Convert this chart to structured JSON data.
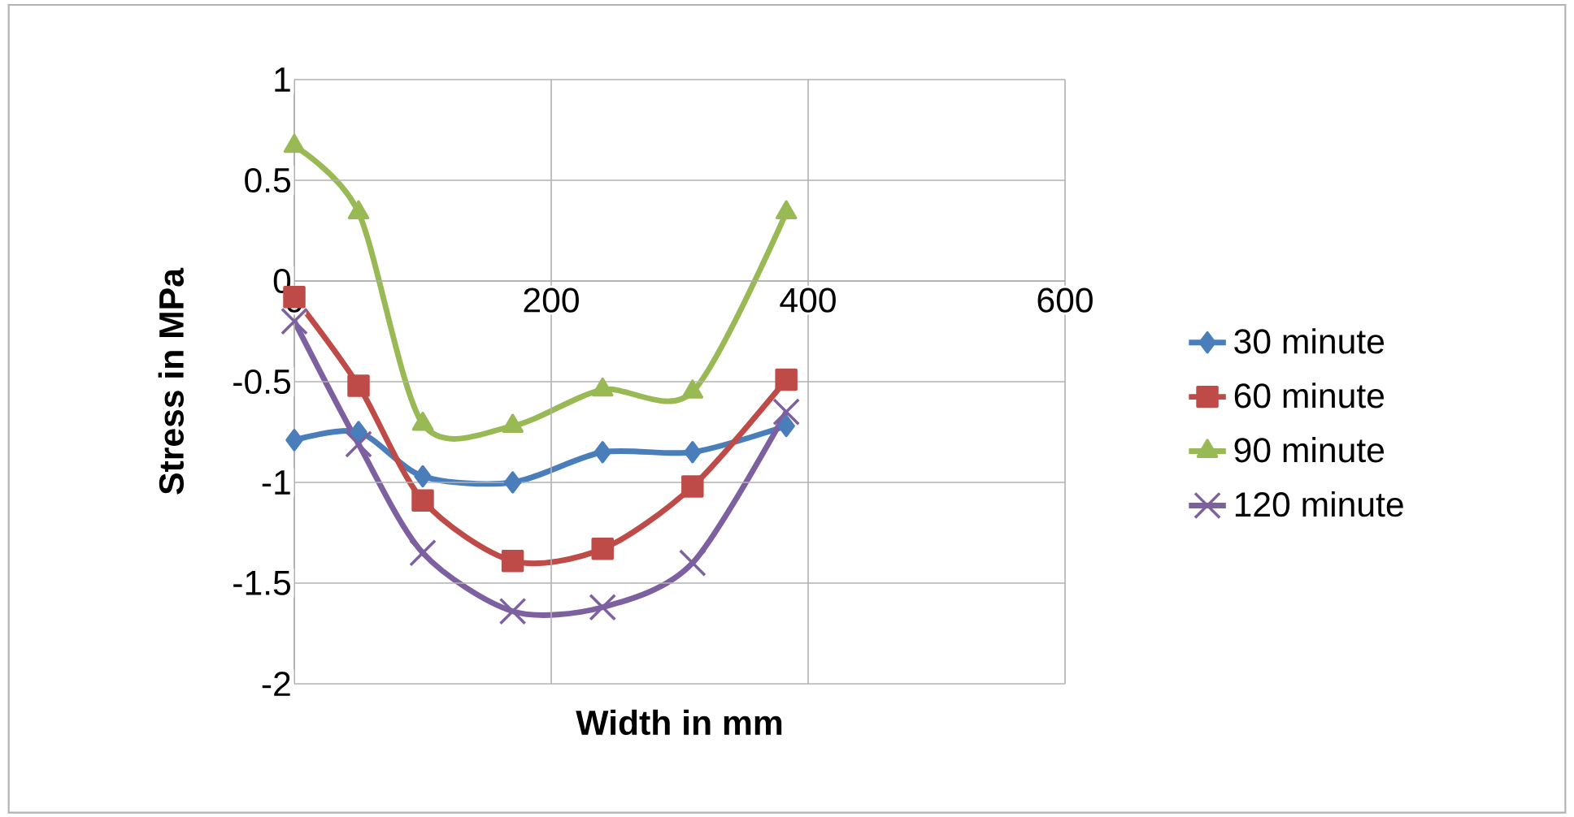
{
  "chart_data": {
    "type": "line",
    "xlabel": "Width in mm",
    "ylabel": "Stress in MPa",
    "x": [
      0,
      50,
      100,
      170,
      240,
      310,
      383
    ],
    "series": [
      {
        "name": "30 minute",
        "color": "#4a7ebb",
        "marker": "diamond",
        "values": [
          -0.79,
          -0.75,
          -0.97,
          -1.0,
          -0.85,
          -0.85,
          -0.72
        ]
      },
      {
        "name": "60 minute",
        "color": "#be4b48",
        "marker": "square",
        "values": [
          -0.08,
          -0.52,
          -1.09,
          -1.39,
          -1.33,
          -1.02,
          -0.49
        ]
      },
      {
        "name": "90 minute",
        "color": "#98b954",
        "marker": "triangle",
        "values": [
          0.67,
          0.34,
          -0.71,
          -0.72,
          -0.54,
          -0.55,
          0.34
        ]
      },
      {
        "name": "120 minute",
        "color": "#7d60a0",
        "marker": "cross",
        "values": [
          -0.2,
          -0.81,
          -1.35,
          -1.64,
          -1.62,
          -1.4,
          -0.65
        ]
      }
    ],
    "xlim": [
      0,
      600
    ],
    "xticks": [
      0,
      200,
      400,
      600
    ],
    "ylim": [
      -2,
      1
    ],
    "yticks": [
      -2,
      -1.5,
      -1,
      -0.5,
      0,
      0.5,
      1
    ],
    "grid": true,
    "legend": "right"
  }
}
